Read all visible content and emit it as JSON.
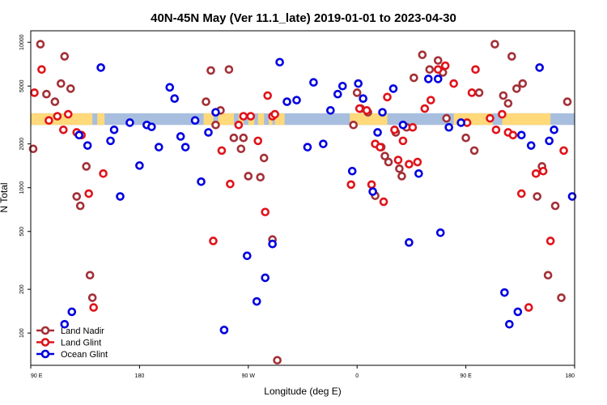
{
  "chart_data": {
    "type": "scatter",
    "title": "40N-45N May (Ver 11.1_late)   2019-01-01 to 2023-04-30",
    "xlabel": "Longitude (deg E)",
    "ylabel": "N Total",
    "x_ticks": [
      {
        "value": 90,
        "label": "90 E"
      },
      {
        "value": 180,
        "label": "180"
      },
      {
        "value": 270,
        "label": "90 W"
      },
      {
        "value": 360,
        "label": "0"
      },
      {
        "value": 450,
        "label": "90 E"
      },
      {
        "value": 540,
        "label": "180"
      }
    ],
    "y_ticks": [
      {
        "value": 100,
        "label": "100"
      },
      {
        "value": 200,
        "label": "200"
      },
      {
        "value": 500,
        "label": "500"
      },
      {
        "value": 1000,
        "label": "1000"
      },
      {
        "value": 2000,
        "label": "2000"
      },
      {
        "value": 5000,
        "label": "5000"
      },
      {
        "value": 10000,
        "label": "10000"
      }
    ],
    "xlim": [
      90,
      540
    ],
    "ylim": [
      60,
      12000
    ],
    "yscale": "log",
    "grid": false,
    "legend_position": "bottom-left",
    "land_sea_strip": {
      "y_range": [
        2700,
        3250
      ],
      "land_color": "#ffd97a",
      "ocean_color": "#a8bede",
      "land_segments": [
        [
          90,
          141
        ],
        [
          146,
          148
        ],
        [
          145,
          151
        ],
        [
          233,
          241
        ],
        [
          245,
          258
        ],
        [
          262,
          266
        ],
        [
          270,
          275
        ],
        [
          278,
          283
        ],
        [
          287,
          290
        ],
        [
          292,
          296
        ],
        [
          296,
          300
        ],
        [
          354,
          385
        ],
        [
          440,
          472
        ],
        [
          480,
          520
        ]
      ]
    },
    "series": [
      {
        "name": "Land Nadir",
        "color": "#a33037",
        "x": [
          92,
          98,
          103,
          110,
          118,
          123,
          115,
          128,
          136,
          139,
          131,
          141,
          235,
          239,
          243,
          247,
          254,
          258,
          264,
          266,
          270,
          280,
          283,
          290,
          294,
          357,
          360,
          363,
          369,
          375,
          380,
          383,
          386,
          392,
          395,
          397,
          401,
          407,
          414,
          420,
          427,
          431,
          434,
          450,
          457,
          461,
          474,
          481,
          485,
          488,
          492,
          497,
          509,
          513,
          518,
          524,
          529,
          534
        ],
        "y": [
          1850,
          9700,
          4400,
          3900,
          8000,
          4800,
          5200,
          870,
          1400,
          250,
          750,
          175,
          3900,
          6400,
          2700,
          3400,
          6500,
          2200,
          1850,
          2200,
          1200,
          1180,
          1600,
          440,
          65,
          2700,
          4500,
          3500,
          3300,
          880,
          1900,
          1650,
          1500,
          2400,
          1350,
          1200,
          2600,
          5700,
          8200,
          6500,
          7500,
          6200,
          3000,
          2200,
          1800,
          4500,
          9700,
          4300,
          3800,
          8000,
          4800,
          5200,
          870,
          1400,
          250,
          750,
          175,
          3900
        ]
      },
      {
        "name": "Land Glint",
        "color": "#e0131a",
        "x": [
          93,
          99,
          105,
          112,
          117,
          121,
          128,
          132,
          138,
          142,
          150,
          241,
          248,
          255,
          262,
          266,
          272,
          278,
          284,
          286,
          290,
          292,
          355,
          362,
          368,
          372,
          375,
          379,
          382,
          385,
          391,
          394,
          398,
          403,
          406,
          410,
          416,
          421,
          427,
          433,
          440,
          451,
          455,
          458,
          470,
          475,
          480,
          485,
          489,
          496,
          502,
          508,
          514,
          520,
          531
        ],
        "y": [
          4500,
          6500,
          2900,
          3100,
          2500,
          3200,
          2400,
          2300,
          910,
          150,
          1250,
          430,
          1800,
          1060,
          2700,
          3100,
          3100,
          2100,
          680,
          4300,
          3100,
          3200,
          1050,
          3500,
          3400,
          1050,
          2000,
          1900,
          800,
          4200,
          2500,
          1550,
          2100,
          1450,
          2600,
          1500,
          3500,
          4000,
          6500,
          6900,
          5200,
          2800,
          4500,
          6500,
          3000,
          2500,
          3200,
          2400,
          2300,
          910,
          150,
          1250,
          1300,
          430,
          1800
        ]
      },
      {
        "name": "Ocean Glint",
        "color": "#0000e0",
        "x": [
          118,
          124,
          130,
          137,
          148,
          156,
          159,
          164,
          172,
          180,
          186,
          190,
          196,
          205,
          209,
          214,
          218,
          226,
          231,
          237,
          243,
          250,
          269,
          277,
          284,
          290,
          296,
          302,
          310,
          319,
          324,
          332,
          338,
          344,
          348,
          356,
          361,
          365,
          373,
          377,
          381,
          390,
          398,
          403,
          411,
          419,
          427,
          429,
          436,
          446,
          482,
          486,
          493,
          496,
          504,
          511,
          519,
          523,
          538
        ],
        "y": [
          115,
          140,
          2300,
          1950,
          6700,
          2100,
          2500,
          870,
          2800,
          1420,
          2700,
          2620,
          1900,
          4900,
          4100,
          2250,
          1900,
          2900,
          1100,
          2400,
          3300,
          105,
          340,
          165,
          240,
          410,
          7300,
          3900,
          4000,
          1900,
          5300,
          2000,
          3400,
          4400,
          5000,
          1300,
          5200,
          4100,
          940,
          2400,
          3300,
          4800,
          2700,
          420,
          1250,
          5600,
          5600,
          490,
          2600,
          2800,
          190,
          115,
          140,
          2300,
          1950,
          6700,
          2100,
          2500,
          870
        ]
      }
    ]
  }
}
